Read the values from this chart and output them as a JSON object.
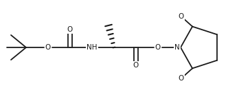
{
  "bg_color": "#ffffff",
  "line_color": "#1a1a1a",
  "line_width": 1.3,
  "font_size": 7.5,
  "figsize": [
    3.48,
    1.44
  ],
  "dpi": 100,
  "xlim": [
    0,
    348
  ],
  "ylim": [
    0,
    144
  ]
}
